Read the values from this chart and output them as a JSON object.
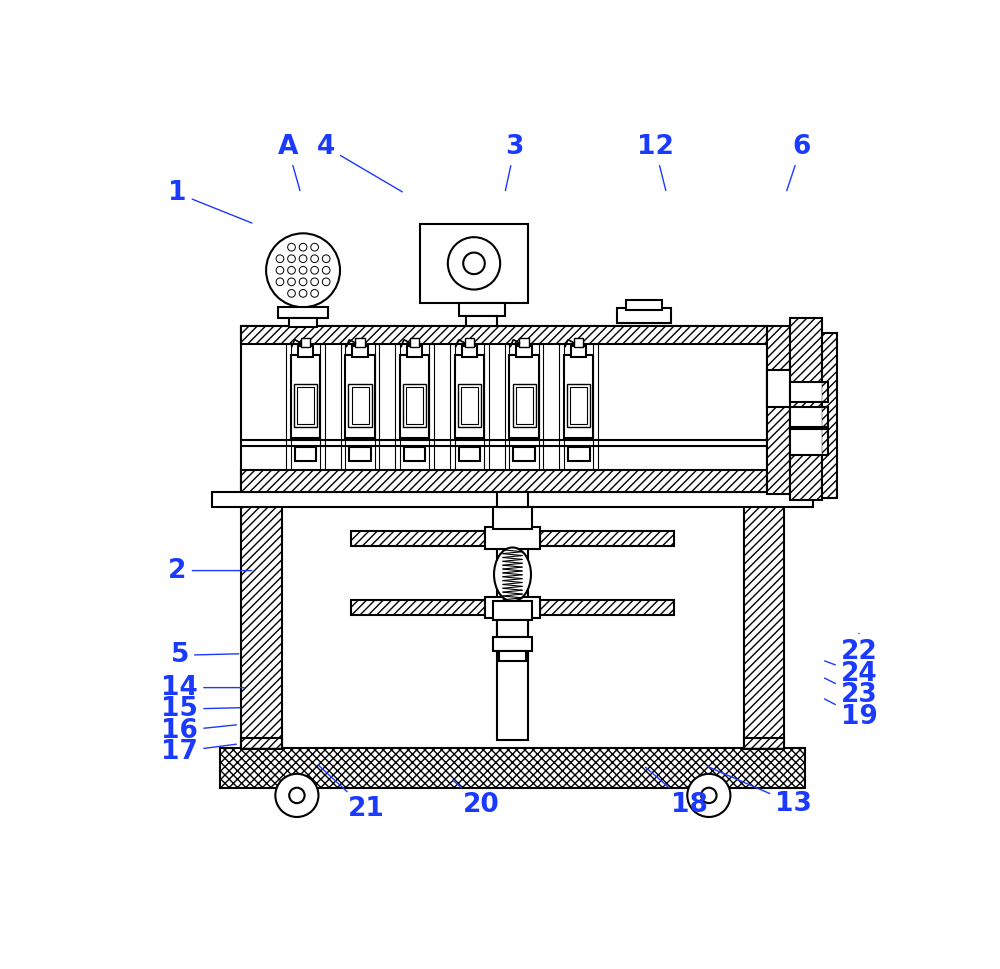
{
  "bg": "#ffffff",
  "lc": "#000000",
  "lbl": "#1a3aff",
  "lw": 1.5,
  "fs": 19,
  "figsize": [
    10.0,
    9.69
  ],
  "dpi": 100,
  "annotations": [
    [
      "21",
      310,
      900,
      245,
      840
    ],
    [
      "20",
      460,
      895,
      420,
      860
    ],
    [
      "18",
      730,
      895,
      670,
      843
    ],
    [
      "13",
      865,
      893,
      750,
      843
    ],
    [
      "17",
      68,
      825,
      145,
      815
    ],
    [
      "16",
      68,
      798,
      145,
      790
    ],
    [
      "15",
      68,
      770,
      150,
      768
    ],
    [
      "14",
      68,
      742,
      155,
      742
    ],
    [
      "5",
      68,
      700,
      148,
      698
    ],
    [
      "2",
      65,
      590,
      165,
      590
    ],
    [
      "1",
      65,
      100,
      165,
      140
    ],
    [
      "A",
      208,
      40,
      225,
      100
    ],
    [
      "4",
      258,
      40,
      360,
      100
    ],
    [
      "3",
      503,
      40,
      490,
      100
    ],
    [
      "12",
      685,
      40,
      700,
      100
    ],
    [
      "6",
      875,
      40,
      855,
      100
    ],
    [
      "19",
      950,
      780,
      902,
      755
    ],
    [
      "23",
      950,
      752,
      902,
      728
    ],
    [
      "24",
      950,
      724,
      902,
      706
    ],
    [
      "22",
      950,
      696,
      950,
      668
    ]
  ]
}
